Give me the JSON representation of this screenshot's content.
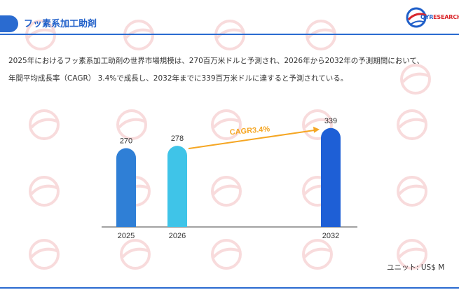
{
  "header": {
    "title": "フッ素系加工助剤"
  },
  "logo": {
    "text_a": "QYR",
    "text_b": "ESEARCH"
  },
  "description": {
    "line1": "2025年におけるフッ素系加工助剤の世界市場規模は、270百万米ドルと予測され、2026年から2032年の予測期間において、",
    "line2": "年間平均成長率（CAGR） 3.4%で成長し、2032年までに339百万米ドルに達すると予測されている。"
  },
  "unit_label": "ユニット: US$ M",
  "colors": {
    "accent": "#2a6bd0",
    "arrow": "#f5a623",
    "bars": [
      "#2f7fd6",
      "#3fc4e8",
      "#1e5fd6"
    ]
  },
  "chart_data": {
    "type": "bar",
    "categories": [
      "2025",
      "2026",
      "2032"
    ],
    "values": [
      270,
      278,
      339
    ],
    "annotation": "CAGR3.4%",
    "ylim": [
      0,
      360
    ],
    "grid": false,
    "legend": "none"
  }
}
